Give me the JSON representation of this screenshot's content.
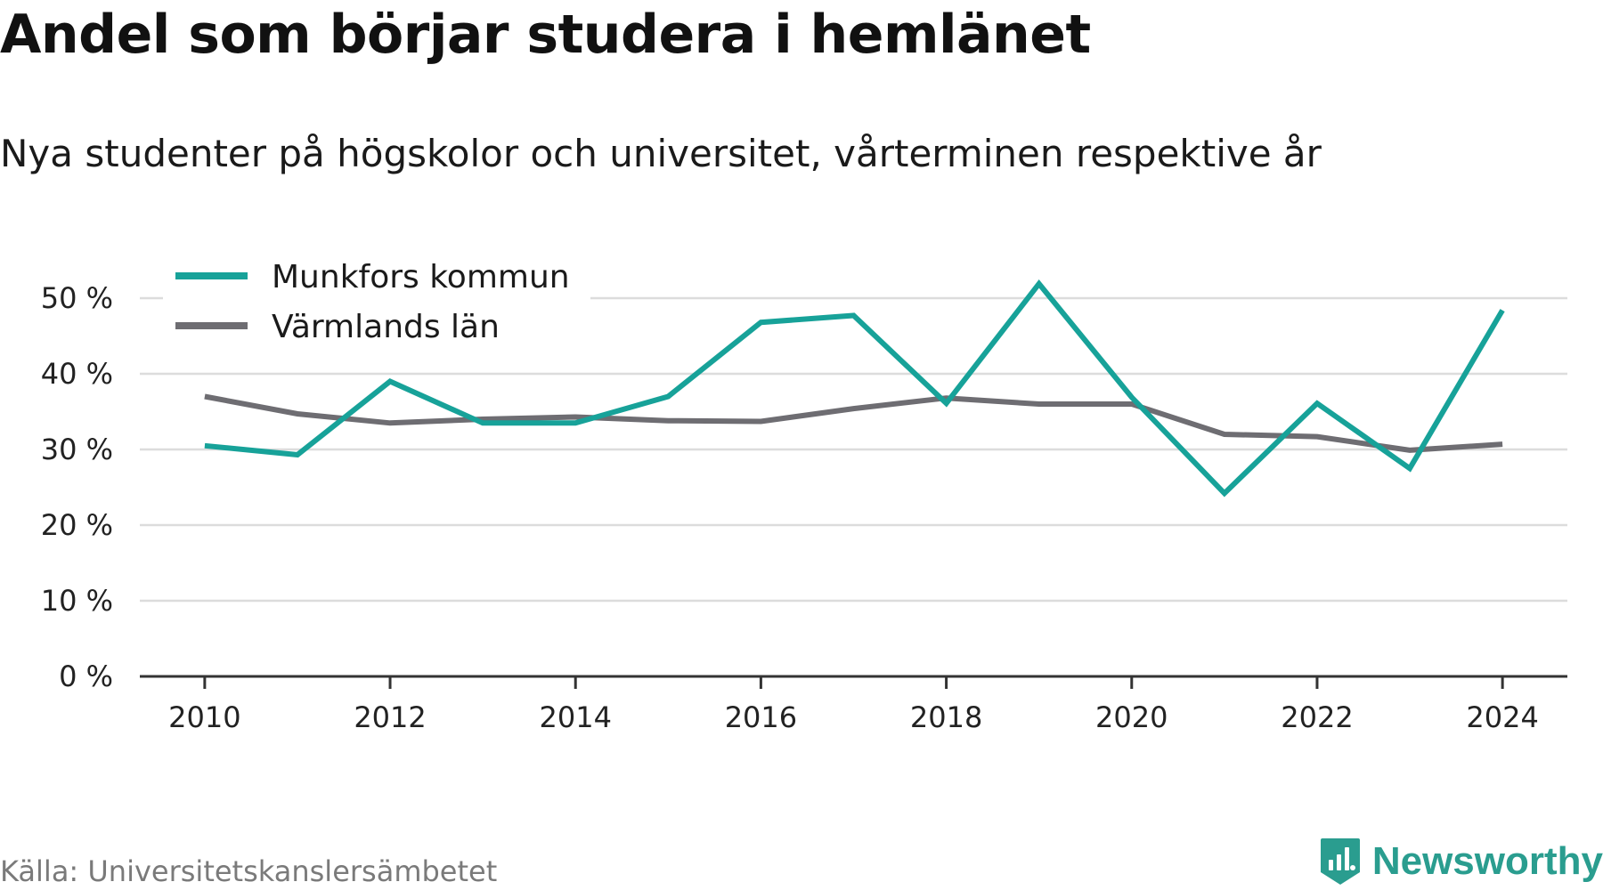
{
  "title": "Andel som börjar studera i hemlänet",
  "subtitle": "Nya studenter på högskolor och universitet, vårterminen respektive år",
  "source": "Källa: Universitetskanslersämbetet",
  "brand": {
    "name": "Newsworthy",
    "icon": "newsworthy-logo-icon",
    "color": "#2a9d8f"
  },
  "chart_data": {
    "type": "line",
    "x": [
      2010,
      2011,
      2012,
      2013,
      2014,
      2015,
      2016,
      2017,
      2018,
      2019,
      2020,
      2021,
      2022,
      2023,
      2024
    ],
    "series": [
      {
        "name": "Munkfors kommun",
        "color": "#17a299",
        "values": [
          30.5,
          29.3,
          39.0,
          33.5,
          33.5,
          37.0,
          46.8,
          47.7,
          36.1,
          51.9,
          36.9,
          24.2,
          36.1,
          27.5,
          48.4
        ]
      },
      {
        "name": "Värmlands län",
        "color": "#6e6d72",
        "values": [
          37.0,
          34.7,
          33.5,
          34.0,
          34.3,
          33.8,
          33.7,
          35.4,
          36.8,
          36.0,
          36.0,
          32.0,
          31.7,
          29.9,
          30.7
        ]
      }
    ],
    "xticks": [
      2010,
      2012,
      2014,
      2016,
      2018,
      2020,
      2022,
      2024
    ],
    "yticks": [
      0,
      10,
      20,
      30,
      40,
      50
    ],
    "ytick_suffix": " %",
    "xlim": [
      2009.3,
      2024.7
    ],
    "ylim": [
      0,
      50
    ],
    "grid": true,
    "legend_position": "top-left"
  }
}
